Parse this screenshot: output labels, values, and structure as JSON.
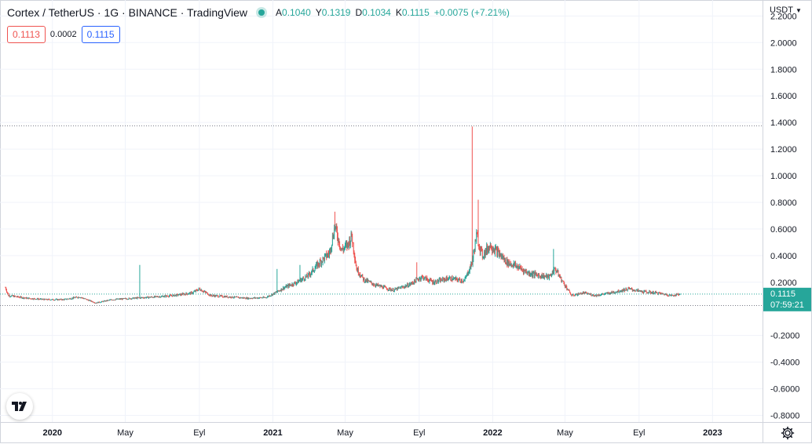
{
  "header": {
    "title": "Cortex / TetherUS · 1G · BINANCE · TradingView",
    "ohlc": [
      {
        "key": "A",
        "value": "0.1040"
      },
      {
        "key": "Y",
        "value": "0.1319"
      },
      {
        "key": "D",
        "value": "0.1034"
      },
      {
        "key": "K",
        "value": "0.1115"
      }
    ],
    "change": "+0.0075 (+7.21%)"
  },
  "quote": {
    "sell": "0.1113",
    "spread": "0.0002",
    "buy": "0.1115"
  },
  "price_scale": {
    "unit": "USDT",
    "last_price": "0.1115",
    "countdown": "07:59:21"
  },
  "icons": {
    "logo": "tradingview-logo-icon",
    "settings": "gear-icon",
    "unit_dropdown": "chevron-down-icon",
    "live": "live-status-dot-icon"
  },
  "colors": {
    "up": "#26a69a",
    "down": "#ef5350",
    "grid": "#f0f3fa",
    "text": "#131722",
    "last_price_tag": "#26a69a"
  },
  "chart_data": {
    "type": "candlestick",
    "y_ticks": [
      "2.2000",
      "2.0000",
      "1.8000",
      "1.6000",
      "1.4000",
      "1.2000",
      "1.0000",
      "0.8000",
      "0.6000",
      "0.4000",
      "0.2000",
      "-0.2000",
      "-0.4000",
      "-0.6000",
      "-0.8000"
    ],
    "ylim": [
      -0.85,
      2.32
    ],
    "x_ticks": [
      {
        "label": "2020",
        "date": "2020-01-01",
        "bold": true
      },
      {
        "label": "May",
        "date": "2020-05-01",
        "bold": false
      },
      {
        "label": "Eyl",
        "date": "2020-09-01",
        "bold": false
      },
      {
        "label": "2021",
        "date": "2021-01-01",
        "bold": true
      },
      {
        "label": "May",
        "date": "2021-05-01",
        "bold": false
      },
      {
        "label": "Eyl",
        "date": "2021-09-01",
        "bold": false
      },
      {
        "label": "2022",
        "date": "2022-01-01",
        "bold": true
      },
      {
        "label": "May",
        "date": "2022-05-01",
        "bold": false
      },
      {
        "label": "Eyl",
        "date": "2022-09-01",
        "bold": false
      },
      {
        "label": "2023",
        "date": "2023-01-01",
        "bold": true
      }
    ],
    "x_range": [
      "2019-10-06",
      "2023-03-25"
    ],
    "data_range": [
      "2019-10-15",
      "2022-11-08"
    ],
    "reference_lines": [
      {
        "value": 1.375,
        "style": "dotted"
      },
      {
        "value": 0.1115,
        "style": "dotted"
      },
      {
        "value": 0.025,
        "style": "dotted"
      }
    ],
    "close_path": [
      [
        "2019-10-15",
        0.16
      ],
      [
        "2019-10-20",
        0.1
      ],
      [
        "2019-11-20",
        0.08
      ],
      [
        "2019-12-20",
        0.07
      ],
      [
        "2020-01-20",
        0.07
      ],
      [
        "2020-02-15",
        0.09
      ],
      [
        "2020-03-13",
        0.045
      ],
      [
        "2020-04-10",
        0.07
      ],
      [
        "2020-05-15",
        0.08
      ],
      [
        "2020-06-20",
        0.09
      ],
      [
        "2020-07-20",
        0.1
      ],
      [
        "2020-08-20",
        0.12
      ],
      [
        "2020-09-01",
        0.15
      ],
      [
        "2020-09-20",
        0.1
      ],
      [
        "2020-10-20",
        0.09
      ],
      [
        "2020-11-20",
        0.08
      ],
      [
        "2020-12-20",
        0.085
      ],
      [
        "2021-01-05",
        0.12
      ],
      [
        "2021-01-20",
        0.16
      ],
      [
        "2021-02-10",
        0.2
      ],
      [
        "2021-03-01",
        0.25
      ],
      [
        "2021-03-20",
        0.35
      ],
      [
        "2021-04-05",
        0.42
      ],
      [
        "2021-04-14",
        0.62
      ],
      [
        "2021-04-25",
        0.44
      ],
      [
        "2021-05-05",
        0.48
      ],
      [
        "2021-05-12",
        0.55
      ],
      [
        "2021-05-20",
        0.3
      ],
      [
        "2021-06-01",
        0.22
      ],
      [
        "2021-06-20",
        0.18
      ],
      [
        "2021-07-20",
        0.14
      ],
      [
        "2021-08-15",
        0.18
      ],
      [
        "2021-09-05",
        0.24
      ],
      [
        "2021-09-25",
        0.2
      ],
      [
        "2021-10-20",
        0.23
      ],
      [
        "2021-11-15",
        0.21
      ],
      [
        "2021-11-28",
        0.35
      ],
      [
        "2021-12-05",
        0.55
      ],
      [
        "2021-12-15",
        0.4
      ],
      [
        "2021-12-28",
        0.48
      ],
      [
        "2022-01-10",
        0.42
      ],
      [
        "2022-01-25",
        0.35
      ],
      [
        "2022-02-10",
        0.32
      ],
      [
        "2022-03-01",
        0.27
      ],
      [
        "2022-03-20",
        0.25
      ],
      [
        "2022-04-05",
        0.24
      ],
      [
        "2022-04-15",
        0.3
      ],
      [
        "2022-04-25",
        0.22
      ],
      [
        "2022-05-12",
        0.1
      ],
      [
        "2022-06-01",
        0.12
      ],
      [
        "2022-06-20",
        0.1
      ],
      [
        "2022-07-15",
        0.12
      ],
      [
        "2022-08-15",
        0.15
      ],
      [
        "2022-09-05",
        0.13
      ],
      [
        "2022-10-01",
        0.12
      ],
      [
        "2022-10-25",
        0.1
      ],
      [
        "2022-11-08",
        0.1115
      ]
    ],
    "spikes": [
      {
        "date": "2020-05-25",
        "high": 0.33
      },
      {
        "date": "2021-01-08",
        "high": 0.3
      },
      {
        "date": "2021-02-15",
        "high": 0.33
      },
      {
        "date": "2021-04-14",
        "high": 0.73
      },
      {
        "date": "2021-05-12",
        "high": 0.58
      },
      {
        "date": "2021-08-28",
        "high": 0.35
      },
      {
        "date": "2021-11-28",
        "high": 1.37
      },
      {
        "date": "2021-12-08",
        "high": 0.82
      },
      {
        "date": "2022-04-12",
        "high": 0.45
      }
    ]
  }
}
